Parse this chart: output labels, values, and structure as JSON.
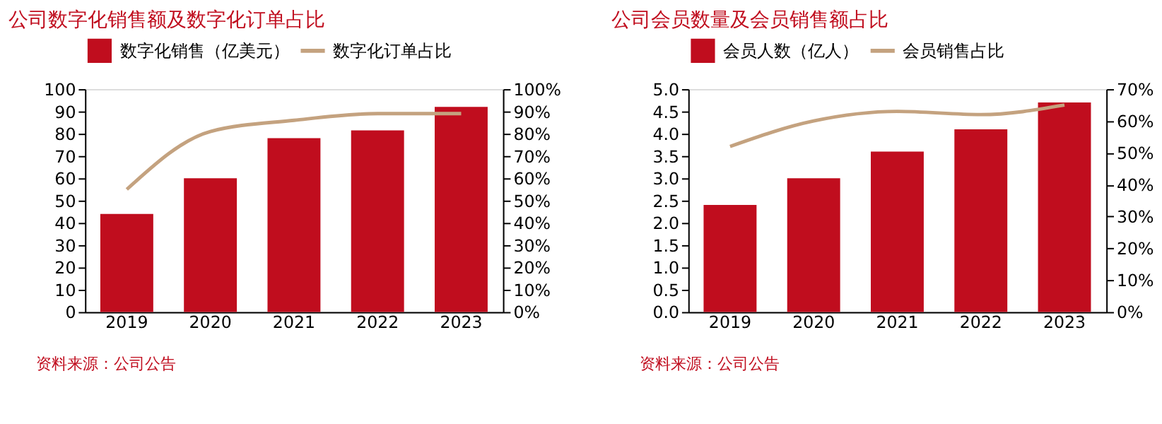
{
  "chart_data": [
    {
      "type": "bar",
      "title": "公司数字化销售额及数字化订单占比",
      "categories": [
        "2019",
        "2020",
        "2021",
        "2022",
        "2023"
      ],
      "series": [
        {
          "name": "数字化销售（亿美元）",
          "color": "#c00d1e",
          "values": [
            44,
            60,
            78,
            81.5,
            92
          ]
        },
        {
          "name": "数字化订单占比",
          "type": "line",
          "axis": "y2",
          "color": "#c4a27f",
          "values": [
            55,
            81,
            86,
            89,
            89
          ]
        }
      ],
      "ylim": [
        0,
        100
      ],
      "yticks": [
        0,
        10,
        20,
        30,
        40,
        50,
        60,
        70,
        80,
        90,
        100
      ],
      "y2lim": [
        0,
        100
      ],
      "y2ticks": [
        {
          "value": 0,
          "label": "0%"
        },
        {
          "value": 10,
          "label": "10%"
        },
        {
          "value": 20,
          "label": "20%"
        },
        {
          "value": 30,
          "label": "30%"
        },
        {
          "value": 40,
          "label": "40%"
        },
        {
          "value": 50,
          "label": "50%"
        },
        {
          "value": 60,
          "label": "60%"
        },
        {
          "value": 70,
          "label": "70%"
        },
        {
          "value": 80,
          "label": "80%"
        },
        {
          "value": 90,
          "label": "90%"
        },
        {
          "value": 100,
          "label": "100%"
        }
      ],
      "legend": "top",
      "grid": false,
      "marker": "none",
      "line_style": "solid",
      "annotations": [
        "资料来源：公司公告"
      ]
    },
    {
      "type": "bar",
      "title": "公司会员数量及会员销售额占比",
      "categories": [
        "2019",
        "2020",
        "2021",
        "2022",
        "2023"
      ],
      "series": [
        {
          "name": "会员人数（亿人）",
          "color": "#c00d1e",
          "values": [
            2.4,
            3.0,
            3.6,
            4.1,
            4.7
          ]
        },
        {
          "name": "会员销售占比",
          "type": "line",
          "axis": "y2",
          "color": "#c4a27f",
          "values": [
            52,
            60,
            63,
            62,
            65
          ]
        }
      ],
      "ylim": [
        0,
        5
      ],
      "yticks": [
        {
          "value": 0,
          "label": "0.0"
        },
        {
          "value": 0.5,
          "label": "0.5"
        },
        {
          "value": 1,
          "label": "1.0"
        },
        {
          "value": 1.5,
          "label": "1.5"
        },
        {
          "value": 2,
          "label": "2.0"
        },
        {
          "value": 2.5,
          "label": "2.5"
        },
        {
          "value": 3,
          "label": "3.0"
        },
        {
          "value": 3.5,
          "label": "3.5"
        },
        {
          "value": 4,
          "label": "4.0"
        },
        {
          "value": 4.5,
          "label": "4.5"
        },
        {
          "value": 5,
          "label": "5.0"
        }
      ],
      "y2lim": [
        0,
        70
      ],
      "y2ticks": [
        {
          "value": 0,
          "label": "0%"
        },
        {
          "value": 10,
          "label": "10%"
        },
        {
          "value": 20,
          "label": "20%"
        },
        {
          "value": 30,
          "label": "30%"
        },
        {
          "value": 40,
          "label": "40%"
        },
        {
          "value": 50,
          "label": "50%"
        },
        {
          "value": 60,
          "label": "60%"
        },
        {
          "value": 70,
          "label": "70%"
        }
      ],
      "legend": "top",
      "grid": false,
      "marker": "none",
      "line_style": "solid",
      "annotations": [
        "资料来源：公司公告"
      ]
    }
  ]
}
